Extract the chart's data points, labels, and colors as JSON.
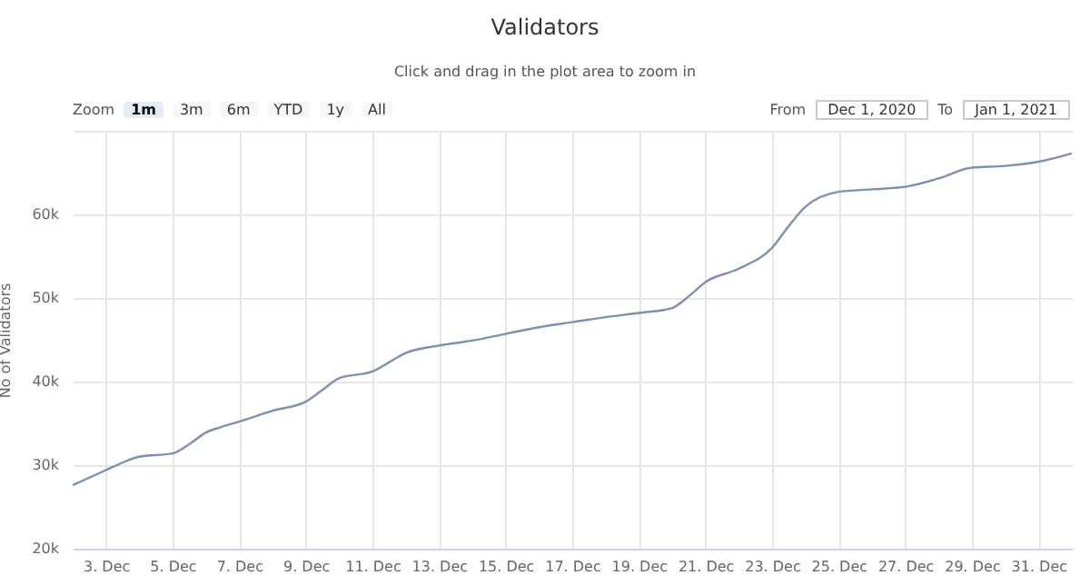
{
  "chart_data": {
    "type": "line",
    "title": "Validators",
    "subtitle": "Click and drag in the plot area to zoom in",
    "ylabel": "No of Validators",
    "annotations": [
      "Zoom",
      "1m",
      "3m",
      "6m",
      "YTD",
      "1y",
      "All",
      "From",
      "Dec 1, 2020",
      "To",
      "Jan 1, 2021"
    ],
    "x": [
      "2020-12-02",
      "2020-12-03",
      "2020-12-03T12:00",
      "2020-12-04",
      "2020-12-05",
      "2020-12-05T12:00",
      "2020-12-06",
      "2020-12-06T12:00",
      "2020-12-07",
      "2020-12-08",
      "2020-12-09",
      "2020-12-09T12:00",
      "2020-12-10",
      "2020-12-11",
      "2020-12-11T12:00",
      "2020-12-12",
      "2020-12-13",
      "2020-12-14",
      "2020-12-15",
      "2020-12-16",
      "2020-12-17",
      "2020-12-18",
      "2020-12-19",
      "2020-12-20",
      "2020-12-20T12:00",
      "2020-12-21",
      "2020-12-22",
      "2020-12-23",
      "2020-12-23T12:00",
      "2020-12-24",
      "2020-12-25",
      "2020-12-26",
      "2020-12-27",
      "2020-12-28",
      "2020-12-29",
      "2020-12-30",
      "2020-12-31",
      "2021-01-01"
    ],
    "series": [
      {
        "color": "#7f8fb0",
        "values": [
          27600,
          29400,
          30300,
          31000,
          31400,
          32500,
          33900,
          34600,
          35200,
          36500,
          37600,
          39000,
          40400,
          41200,
          42300,
          43400,
          44300,
          44900,
          45700,
          46500,
          47100,
          47700,
          48200,
          48800,
          50200,
          51900,
          53500,
          56000,
          58600,
          60900,
          62700,
          63000,
          63300,
          64300,
          65600,
          65800,
          66300,
          67300
        ]
      }
    ],
    "xlim": [
      "2020-12-02",
      "2021-01-01"
    ],
    "xticks": [
      {
        "value": "2020-12-03",
        "label": "3. Dec"
      },
      {
        "value": "2020-12-05",
        "label": "5. Dec"
      },
      {
        "value": "2020-12-07",
        "label": "7. Dec"
      },
      {
        "value": "2020-12-09",
        "label": "9. Dec"
      },
      {
        "value": "2020-12-11",
        "label": "11. Dec"
      },
      {
        "value": "2020-12-13",
        "label": "13. Dec"
      },
      {
        "value": "2020-12-15",
        "label": "15. Dec"
      },
      {
        "value": "2020-12-17",
        "label": "17. Dec"
      },
      {
        "value": "2020-12-19",
        "label": "19. Dec"
      },
      {
        "value": "2020-12-21",
        "label": "21. Dec"
      },
      {
        "value": "2020-12-23",
        "label": "23. Dec"
      },
      {
        "value": "2020-12-25",
        "label": "25. Dec"
      },
      {
        "value": "2020-12-27",
        "label": "27. Dec"
      },
      {
        "value": "2020-12-29",
        "label": "29. Dec"
      },
      {
        "value": "2020-12-31",
        "label": "31. Dec"
      }
    ],
    "ylim": [
      20000,
      70000
    ],
    "yticks": [
      {
        "value": 20000,
        "label": "20k"
      },
      {
        "value": 30000,
        "label": "30k"
      },
      {
        "value": 40000,
        "label": "40k"
      },
      {
        "value": 50000,
        "label": "50k"
      },
      {
        "value": 60000,
        "label": "60k"
      },
      {
        "value": 70000,
        "label": null
      }
    ],
    "grid": true,
    "marker": "none",
    "line_style": "solid"
  }
}
